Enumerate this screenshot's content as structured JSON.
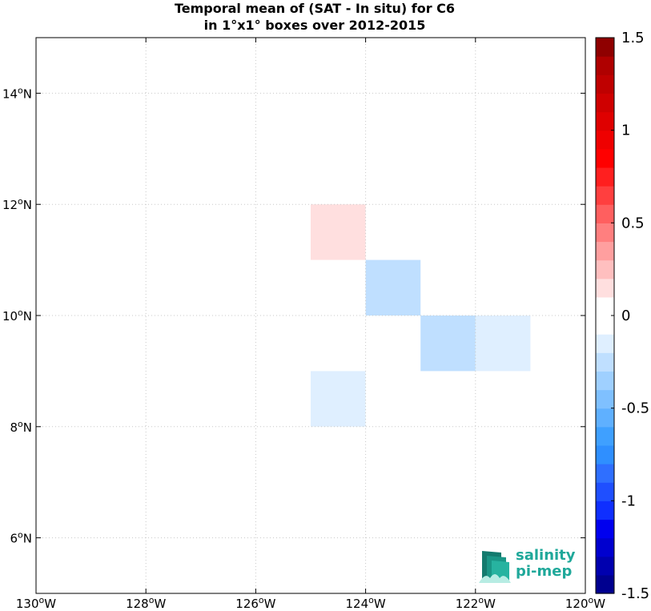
{
  "chart_data": {
    "type": "heatmap",
    "title_line1": "Temporal mean of (SAT - In situ) for C6",
    "title_line2": "in 1°x1° boxes over 2012-2015",
    "xlim": [
      -130,
      -120
    ],
    "ylim": [
      5,
      15
    ],
    "x_ticks": [
      {
        "value": -130,
        "deg": "130",
        "hem": "W"
      },
      {
        "value": -128,
        "deg": "128",
        "hem": "W"
      },
      {
        "value": -126,
        "deg": "126",
        "hem": "W"
      },
      {
        "value": -124,
        "deg": "124",
        "hem": "W"
      },
      {
        "value": -122,
        "deg": "122",
        "hem": "W"
      },
      {
        "value": -120,
        "deg": "120",
        "hem": "W"
      }
    ],
    "y_ticks": [
      {
        "value": 6,
        "deg": "6",
        "hem": "N"
      },
      {
        "value": 8,
        "deg": "8",
        "hem": "N"
      },
      {
        "value": 10,
        "deg": "10",
        "hem": "N"
      },
      {
        "value": 12,
        "deg": "12",
        "hem": "N"
      },
      {
        "value": 14,
        "deg": "14",
        "hem": "N"
      }
    ],
    "grid": true,
    "cells": [
      {
        "lon": -125,
        "lat": 11,
        "value": 0.15
      },
      {
        "lon": -124,
        "lat": 10,
        "value": -0.25
      },
      {
        "lon": -123,
        "lat": 9,
        "value": -0.25
      },
      {
        "lon": -122,
        "lat": 9,
        "value": -0.12
      },
      {
        "lon": -125,
        "lat": 8,
        "value": -0.12
      }
    ],
    "colorbar": {
      "range": [
        -1.5,
        1.5
      ],
      "tick_values": [
        1.5,
        1,
        0.5,
        0,
        -0.5,
        -1,
        -1.5
      ],
      "tick_labels": [
        "1.5",
        "1",
        "0.5",
        "0",
        "-0.5",
        "-1",
        "-1.5"
      ],
      "colors": [
        "#00008f",
        "#0000af",
        "#0000cf",
        "#0000ef",
        "#0f2fff",
        "#1f4fff",
        "#2f6fff",
        "#2f8fff",
        "#3fa0ff",
        "#5fb0ff",
        "#7fc0ff",
        "#9fd0ff",
        "#bfdfff",
        "#dfefff",
        "#ffffff",
        "#ffffff",
        "#ffdfdf",
        "#ffbfbf",
        "#ff9f9f",
        "#ff7f7f",
        "#ff5f5f",
        "#ff3f3f",
        "#ff1f1f",
        "#ff0000",
        "#ef0000",
        "#df0000",
        "#cf0000",
        "#bf0000",
        "#af0000",
        "#8f0000"
      ]
    }
  },
  "logo": {
    "line1": "salinity",
    "line2": "pi-mep"
  }
}
